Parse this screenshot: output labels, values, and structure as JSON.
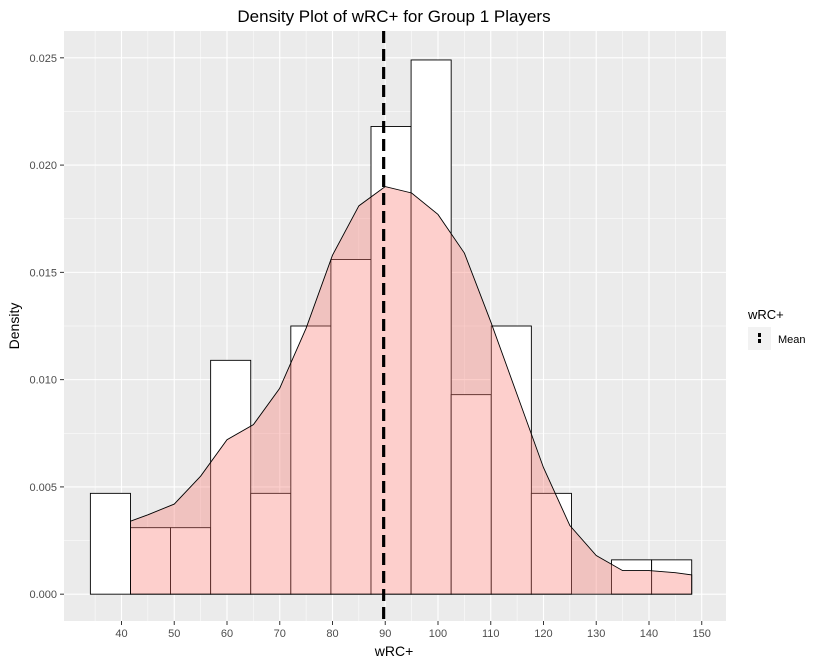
{
  "chart_data": {
    "type": "histogram-density",
    "title": "Density Plot of wRC+ for Group 1 Players",
    "xlabel": "wRC+",
    "ylabel": "Density",
    "xlim": [
      29.1,
      154.6
    ],
    "ylim": [
      -0.00125,
      0.02625
    ],
    "x_ticks": [
      40,
      50,
      60,
      70,
      80,
      90,
      100,
      110,
      120,
      130,
      140,
      150
    ],
    "y_ticks": [
      0.0,
      0.005,
      0.01,
      0.015,
      0.02,
      0.025
    ],
    "y_tick_labels": [
      "0.000",
      "0.005",
      "0.010",
      "0.015",
      "0.020",
      "0.025"
    ],
    "histogram": {
      "bin_width": 7.6,
      "bins": [
        {
          "x0": 34.1,
          "x1": 41.7,
          "density": 0.0047
        },
        {
          "x0": 41.7,
          "x1": 49.3,
          "density": 0.0031
        },
        {
          "x0": 49.3,
          "x1": 56.9,
          "density": 0.0031
        },
        {
          "x0": 56.9,
          "x1": 64.5,
          "density": 0.0109
        },
        {
          "x0": 64.5,
          "x1": 72.1,
          "density": 0.0047
        },
        {
          "x0": 72.1,
          "x1": 79.7,
          "density": 0.0125
        },
        {
          "x0": 79.7,
          "x1": 87.3,
          "density": 0.0156
        },
        {
          "x0": 87.3,
          "x1": 94.9,
          "density": 0.0218
        },
        {
          "x0": 94.9,
          "x1": 102.5,
          "density": 0.0249
        },
        {
          "x0": 102.5,
          "x1": 110.1,
          "density": 0.0093
        },
        {
          "x0": 110.1,
          "x1": 117.7,
          "density": 0.0125
        },
        {
          "x0": 117.7,
          "x1": 125.3,
          "density": 0.0047
        },
        {
          "x0": 125.3,
          "x1": 132.9,
          "density": 0.0
        },
        {
          "x0": 132.9,
          "x1": 140.5,
          "density": 0.0016
        },
        {
          "x0": 140.5,
          "x1": 148.1,
          "density": 0.0016
        }
      ]
    },
    "density_curve": [
      [
        41.7,
        0.0034
      ],
      [
        45,
        0.0037
      ],
      [
        50,
        0.0042
      ],
      [
        55,
        0.0055
      ],
      [
        60,
        0.0072
      ],
      [
        65,
        0.0079
      ],
      [
        70,
        0.0096
      ],
      [
        75,
        0.0124
      ],
      [
        80,
        0.0158
      ],
      [
        85,
        0.0181
      ],
      [
        90,
        0.019
      ],
      [
        95,
        0.0187
      ],
      [
        100,
        0.0177
      ],
      [
        105,
        0.0159
      ],
      [
        110,
        0.0127
      ],
      [
        115,
        0.0093
      ],
      [
        120,
        0.0059
      ],
      [
        125,
        0.0032
      ],
      [
        130,
        0.0018
      ],
      [
        135,
        0.0011
      ],
      [
        140,
        0.0011
      ],
      [
        145,
        0.001
      ],
      [
        148.1,
        0.0009
      ]
    ],
    "mean_line": {
      "x": 89.7,
      "label": "Mean"
    },
    "legend": {
      "title": "wRC+",
      "position": "right",
      "entries": [
        "Mean"
      ]
    },
    "colors": {
      "panel_bg": "#EBEBEB",
      "grid": "#FFFFFF",
      "density_fill": "#F8766D",
      "density_fill_opacity": 0.35,
      "histogram_fill": "#FFFFFF",
      "outline": "#000000",
      "mean_line": "#000000"
    },
    "grid": true
  }
}
